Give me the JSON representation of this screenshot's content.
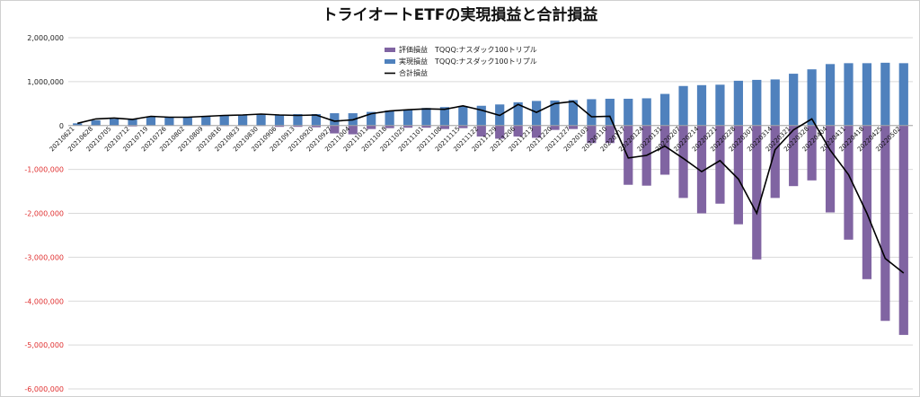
{
  "chart_data": {
    "type": "bar",
    "title": "トライオートETFの実現損益と合計損益",
    "xlabel": "",
    "ylabel": "",
    "ylim": [
      -6000000,
      2000000
    ],
    "y_ticks": [
      2000000,
      1000000,
      0,
      -1000000,
      -2000000,
      -3000000,
      -4000000,
      -5000000,
      -6000000
    ],
    "y_tick_labels": [
      "2,000,000",
      "1,000,000",
      "0",
      "-1,000,000",
      "-2,000,000",
      "-3,000,000",
      "-4,000,000",
      "-5,000,000",
      "-6,000,000"
    ],
    "grid": true,
    "legend_position": "top-center",
    "x_labels": [
      "20210621",
      "20210628",
      "20210705",
      "20210712",
      "20210719",
      "20210726",
      "20210802",
      "20210809",
      "20210816",
      "20210823",
      "20210830",
      "20210906",
      "20210913",
      "20210920",
      "20210927",
      "20211004",
      "20211011",
      "20211018",
      "20211025",
      "20211101",
      "20211108",
      "20211115",
      "20211122",
      "20211129",
      "20211206",
      "20211213",
      "20211220",
      "20211227",
      "20220103",
      "20220110",
      "20220117",
      "20220124",
      "20220131",
      "20220207",
      "20220214",
      "20220221",
      "20220228",
      "20220307",
      "20220314",
      "20220321",
      "20220328",
      "20220404",
      "20220411",
      "20220418",
      "20220425",
      "20220502"
    ],
    "series": [
      {
        "name": "評価損益　TQQQ:ナスダック100トリプル",
        "kind": "bar",
        "color": "#8064a2",
        "values": [
          0,
          0,
          0,
          -20000,
          0,
          0,
          0,
          -10000,
          -10000,
          -10000,
          -10000,
          -30000,
          -30000,
          -40000,
          -180000,
          -200000,
          -80000,
          -60000,
          -50000,
          -50000,
          -80000,
          -60000,
          -250000,
          -300000,
          -250000,
          -280000,
          -100000,
          -80000,
          -400000,
          -400000,
          -1350000,
          -1370000,
          -1120000,
          -1650000,
          -2000000,
          -1780000,
          -2250000,
          -3050000,
          -1650000,
          -1380000,
          -1250000,
          -1980000,
          -2600000,
          -3500000,
          -4450000,
          -4770000
        ]
      },
      {
        "name": "実現損益　TQQQ:ナスダック100トリプル",
        "kind": "bar",
        "color": "#4f81bd",
        "values": [
          50000,
          120000,
          150000,
          150000,
          200000,
          200000,
          200000,
          220000,
          230000,
          240000,
          250000,
          250000,
          260000,
          260000,
          280000,
          280000,
          310000,
          340000,
          360000,
          400000,
          420000,
          440000,
          450000,
          480000,
          530000,
          560000,
          570000,
          580000,
          600000,
          610000,
          610000,
          620000,
          720000,
          900000,
          920000,
          930000,
          1020000,
          1040000,
          1050000,
          1180000,
          1280000,
          1400000,
          1420000,
          1420000,
          1430000,
          1420000
        ]
      },
      {
        "name": "合計損益",
        "kind": "line",
        "color": "#000000",
        "values": [
          50000,
          150000,
          170000,
          140000,
          210000,
          190000,
          190000,
          210000,
          230000,
          240000,
          260000,
          240000,
          230000,
          240000,
          100000,
          130000,
          270000,
          330000,
          360000,
          380000,
          370000,
          450000,
          350000,
          230000,
          480000,
          300000,
          500000,
          550000,
          200000,
          210000,
          -740000,
          -680000,
          -470000,
          -750000,
          -1050000,
          -800000,
          -1220000,
          -2000000,
          -550000,
          -100000,
          150000,
          -560000,
          -1120000,
          -2000000,
          -3030000,
          -3360000
        ]
      }
    ]
  }
}
